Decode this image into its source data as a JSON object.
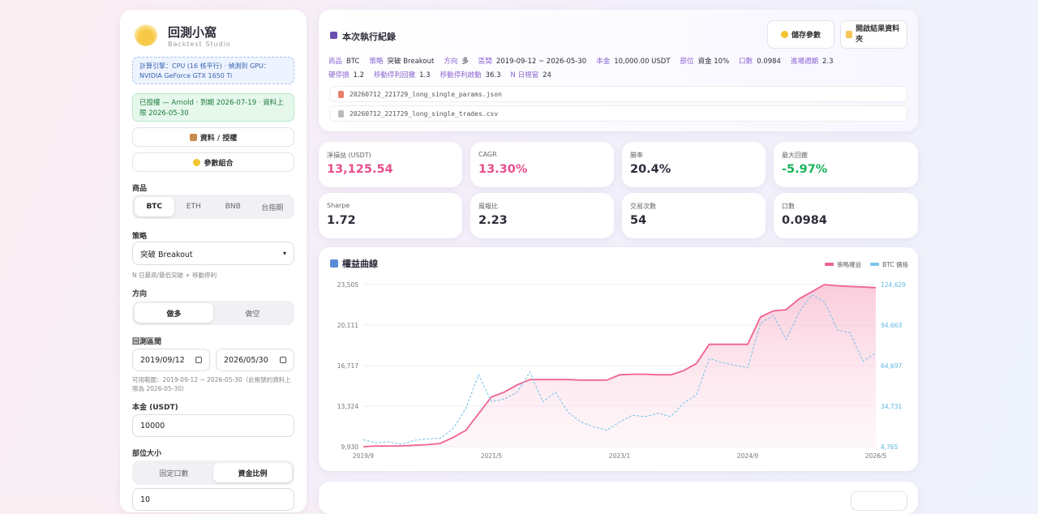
{
  "sidebar": {
    "app_title": "回測小窩",
    "app_subtitle": "Backtest Studio",
    "compute_engine": "計算引擎：CPU (16 核平行) · 偵測到 GPU：NVIDIA GeForce GTX 1650 Ti",
    "license": "已授權 — Arnold · 到期 2026-07-19 · 資料上限 2026-05-30",
    "buttons": [
      "資料 / 授權",
      "參數組合"
    ],
    "product_label": "商品",
    "products": [
      "BTC",
      "ETH",
      "BNB",
      "台指期"
    ],
    "strategy_label": "策略",
    "strategy": "突破 Breakout",
    "strategy_hint": "N 日最高/最低突破 + 移動停利",
    "direction_label": "方向",
    "directions": [
      "做多",
      "做空"
    ],
    "period_label": "回測區間",
    "start": "2019/09/12",
    "end": "2026/05/30",
    "range_hint": "可用範圍：2019-09-12 ~ 2026-05-30（此帳號的資料上限為 2026-05-30）",
    "capital_label": "本金 (USDT)",
    "capital": "10000",
    "size_label": "部位大小",
    "size_modes": [
      "固定口數",
      "資金比例"
    ],
    "size_value": "10"
  },
  "run": {
    "title": "本次執行紀錄",
    "buttons": [
      "儲存參數",
      "開啟結果資料夾"
    ],
    "meta": [
      {
        "label": "商品",
        "value": "BTC"
      },
      {
        "label": "策略",
        "value": "突破 Breakout"
      },
      {
        "label": "方向",
        "value": "多"
      },
      {
        "label": "區間",
        "value": "2019-09-12 ~ 2026-05-30"
      },
      {
        "label": "本金",
        "value": "10,000.00 USDT"
      },
      {
        "label": "部位",
        "value": "資金 10%"
      },
      {
        "label": "口數",
        "value": "0.0984"
      },
      {
        "label": "進場週期",
        "value": "2.3"
      },
      {
        "label": "硬停損",
        "value": "1.2"
      },
      {
        "label": "移動停利回撤",
        "value": "1.3"
      },
      {
        "label": "移動停利啟動",
        "value": "36.3"
      },
      {
        "label": "N 日視窗",
        "value": "24"
      }
    ],
    "files": [
      "20260712_221729_long_single_params.json",
      "20260712_221729_long_single_trades.csv"
    ]
  },
  "metrics": [
    {
      "label": "淨損益 (USDT)",
      "value": "13,125.54"
    },
    {
      "label": "CAGR",
      "value": "13.30%"
    },
    {
      "label": "勝率",
      "value": "20.4%"
    },
    {
      "label": "最大回撤",
      "value": "-5.97%"
    },
    {
      "label": "Sharpe",
      "value": "1.72"
    },
    {
      "label": "風報比",
      "value": "2.23"
    },
    {
      "label": "交易次數",
      "value": "54"
    },
    {
      "label": "口數",
      "value": "0.0984"
    }
  ],
  "chart_data": {
    "type": "line",
    "title": "權益曲線",
    "categories": [
      "2019/9",
      null,
      null,
      null,
      null,
      null,
      null,
      null,
      null,
      null,
      "2021/5",
      null,
      null,
      null,
      null,
      null,
      null,
      null,
      null,
      null,
      "2023/1",
      null,
      null,
      null,
      null,
      null,
      null,
      null,
      null,
      null,
      "2024/9",
      null,
      null,
      null,
      null,
      null,
      null,
      null,
      null,
      null,
      "2026/5"
    ],
    "series": [
      {
        "name": "策略權益",
        "color": "#f06292",
        "values": [
          9930,
          9990,
          9990,
          10000,
          10050,
          10100,
          10200,
          10700,
          11300,
          12700,
          14100,
          14500,
          15100,
          15550,
          15550,
          15550,
          15550,
          15500,
          15500,
          15500,
          15950,
          16000,
          16000,
          15950,
          15950,
          16300,
          16900,
          18500,
          18500,
          18500,
          18500,
          20800,
          21300,
          21400,
          22300,
          22900,
          23505,
          23400,
          23350,
          23300,
          23250
        ]
      },
      {
        "name": "BTC 價格",
        "color": "#7cc5e8",
        "axis": "y2",
        "values": [
          10000,
          7500,
          8500,
          6500,
          9500,
          10500,
          11000,
          18000,
          33000,
          58000,
          38000,
          40000,
          45000,
          60000,
          38000,
          45000,
          30000,
          23000,
          19500,
          17000,
          23000,
          28000,
          27000,
          29500,
          27000,
          37000,
          43000,
          70000,
          67000,
          65000,
          63000,
          96000,
          102000,
          84000,
          104000,
          117000,
          112000,
          91000,
          89000,
          68000,
          74000
        ]
      }
    ],
    "ylim": [
      9930,
      23505
    ],
    "yticks": [
      {
        "value": 9930,
        "label": "9,930"
      },
      {
        "value": 13324,
        "label": "13,324"
      },
      {
        "value": 16717,
        "label": "16,717"
      },
      {
        "value": 20111,
        "label": "20,111"
      },
      {
        "value": 23505,
        "label": "23,505"
      }
    ],
    "y2lim": [
      4765,
      124629
    ],
    "y2ticks": [
      {
        "value": 4765,
        "label": "4,765"
      },
      {
        "value": 34731,
        "label": "34,731"
      },
      {
        "value": 64697,
        "label": "64,697"
      },
      {
        "value": 94663,
        "label": "94,663"
      },
      {
        "value": 124629,
        "label": "124,629"
      }
    ],
    "grid": true,
    "legend": "top-right"
  }
}
